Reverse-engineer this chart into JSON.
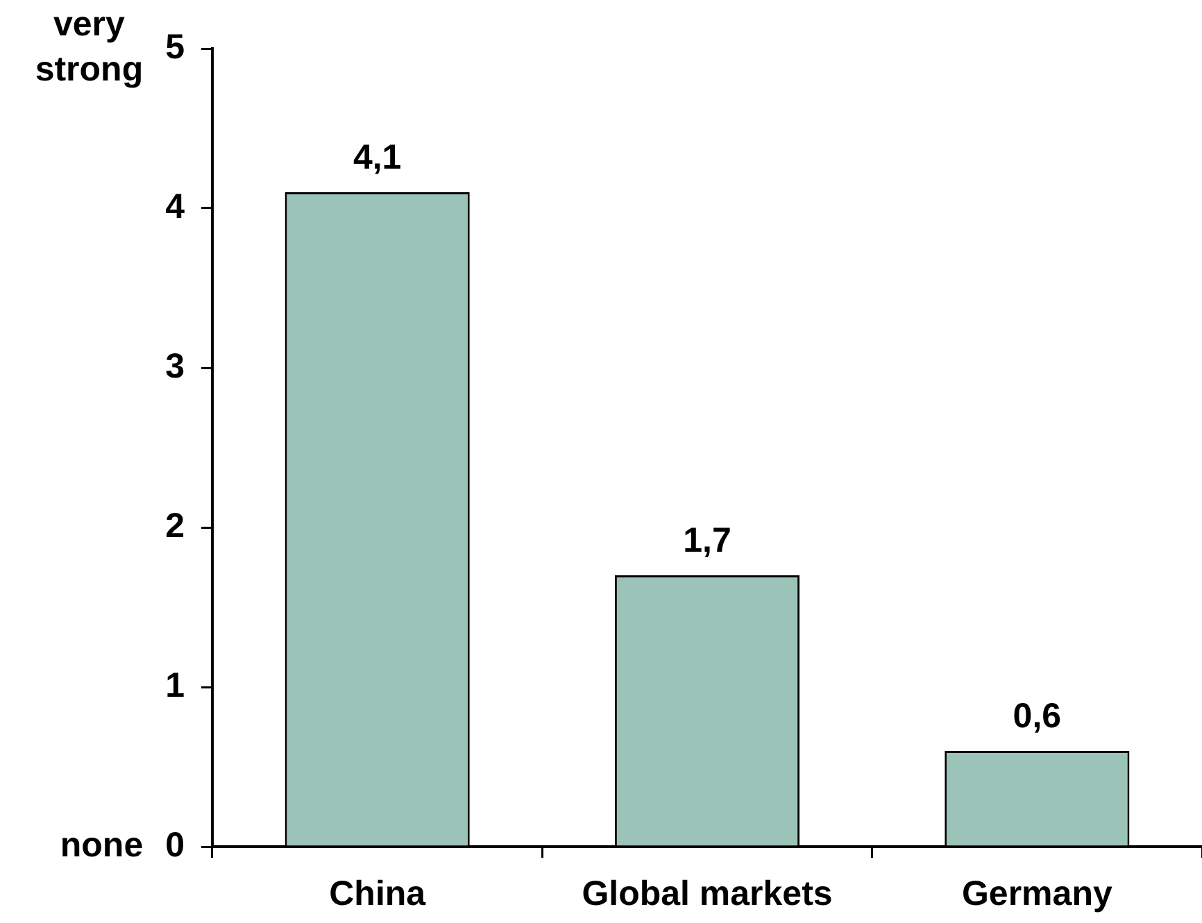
{
  "chart_data": {
    "type": "bar",
    "categories": [
      "China",
      "Global markets",
      "Germany"
    ],
    "values": [
      4.1,
      1.7,
      0.6
    ],
    "color": "#9bc3b7",
    "value_labels": [
      "4,1",
      "1,7",
      "0,6"
    ],
    "ylim": [
      0,
      5
    ],
    "yticks": [
      0,
      1,
      2,
      3,
      4,
      5
    ],
    "annotations": [
      "very strong",
      "none"
    ]
  }
}
